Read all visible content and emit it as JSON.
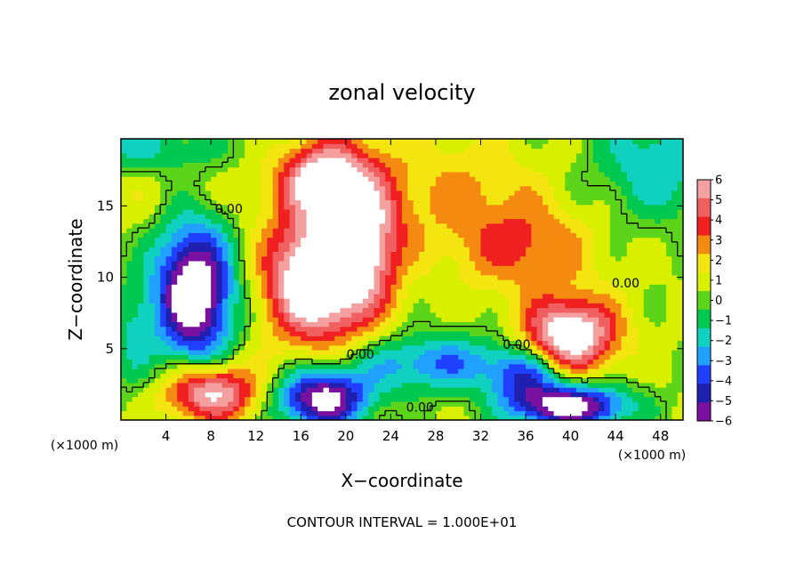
{
  "chart_data": {
    "type": "heatmap",
    "title": "zonal velocity",
    "xlabel": "X−coordinate",
    "ylabel": "Z−coordinate",
    "x_unit": "(×1000 m)",
    "y_unit": "(×1000 m)",
    "xlim": [
      0,
      50
    ],
    "ylim": [
      0,
      19.7
    ],
    "x_ticks": [
      4,
      8,
      12,
      16,
      20,
      24,
      28,
      32,
      36,
      40,
      44,
      48
    ],
    "y_ticks": [
      5,
      10,
      15
    ],
    "colorbar": {
      "levels": [
        6,
        5,
        4,
        3,
        2,
        1,
        0,
        -1,
        -2,
        -3,
        -4,
        -5,
        -6
      ],
      "labels": [
        "6",
        "5",
        "4",
        "3",
        "2",
        "1",
        "0",
        "−1",
        "−2",
        "−3",
        "−4",
        "−5",
        "−6"
      ],
      "colors": [
        "#f4a0a0",
        "#f06060",
        "#f02020",
        "#f58a10",
        "#f4e410",
        "#d8f000",
        "#5cd41a",
        "#00c850",
        "#10d0c0",
        "#20a0ff",
        "#2040ff",
        "#2020b0",
        "#7a10a0"
      ],
      "over_color": "#ffffff",
      "under_color": "#ffffff"
    },
    "contour_labels": [
      {
        "text": "0.00",
        "x": 9.6,
        "z": 14.8
      },
      {
        "text": "0.00",
        "x": 44.9,
        "z": 9.6
      },
      {
        "text": "0.00",
        "x": 21.3,
        "z": 4.6
      },
      {
        "text": "0.00",
        "x": 26.6,
        "z": 0.9
      },
      {
        "text": "0.00",
        "x": 35.2,
        "z": 5.3
      }
    ],
    "fields": [
      {
        "note": "upper-left jet",
        "x": 4,
        "z": 17.5,
        "value": 1,
        "rx": 10,
        "rz": 4
      },
      {
        "note": "top blue",
        "x": 2,
        "z": 19,
        "value": -3,
        "rx": 8,
        "rz": 2
      },
      {
        "note": "top right blue",
        "x": 48,
        "z": 18,
        "value": -3,
        "rx": 6,
        "rz": 4
      },
      {
        "note": "right green",
        "x": 46,
        "z": 12,
        "value": 0,
        "rx": 8,
        "rz": 5
      },
      {
        "note": "left negative cell",
        "x": 6.5,
        "z": 9,
        "value": -9,
        "rx": 3.5,
        "rz": 5
      },
      {
        "note": "central positive cell",
        "x": 17.5,
        "z": 10,
        "value": 9,
        "rx": 4.5,
        "rz": 4.5
      },
      {
        "note": "upper jet red",
        "x": 18,
        "z": 17,
        "value": 7,
        "rx": 3.5,
        "rz": 2.5
      },
      {
        "note": "diagonal red band",
        "x": 22,
        "z": 13,
        "value": 5,
        "rx": 3,
        "rz": 5
      },
      {
        "note": "yellow band",
        "x": 30,
        "z": 16,
        "value": 2,
        "rx": 8,
        "rz": 4
      },
      {
        "note": "orange arm",
        "x": 36,
        "z": 12,
        "value": 3,
        "rx": 6,
        "rz": 3
      },
      {
        "note": "right positive cell",
        "x": 40,
        "z": 6,
        "value": 8,
        "rx": 4,
        "rz": 2.5
      },
      {
        "note": "bottom-left red",
        "x": 8,
        "z": 2,
        "value": 7,
        "rx": 4,
        "rz": 2
      },
      {
        "note": "bottom negative",
        "x": 18,
        "z": 1.5,
        "value": -8,
        "rx": 4,
        "rz": 2
      },
      {
        "note": "bottom-right negative",
        "x": 40,
        "z": 1,
        "value": -8,
        "rx": 5,
        "rz": 1.5
      },
      {
        "note": "mid negative band",
        "x": 28,
        "z": 4,
        "value": -4,
        "rx": 8,
        "rz": 2
      },
      {
        "note": "left edge blue",
        "x": 1,
        "z": 6,
        "value": -2,
        "rx": 2,
        "rz": 4
      },
      {
        "note": "lower mid negative",
        "x": 36,
        "z": 3,
        "value": -4,
        "rx": 3,
        "rz": 2
      }
    ],
    "contour_interval_text": "CONTOUR INTERVAL = 1.000E+01"
  }
}
